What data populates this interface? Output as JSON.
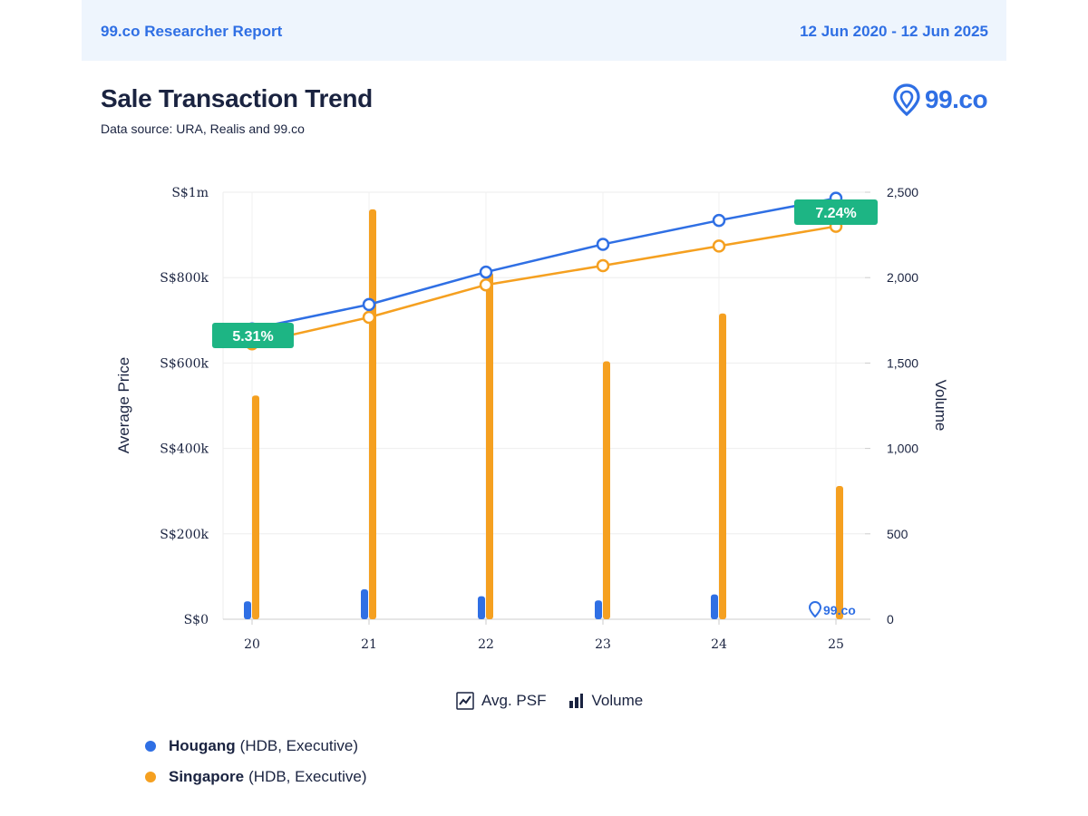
{
  "header": {
    "brand": "99.co Researcher Report",
    "date_range": "12 Jun 2020 - 12 Jun 2025"
  },
  "title": "Sale Transaction Trend",
  "subtitle": "Data source: URA, Realis and 99.co",
  "logo": {
    "text": "99.co",
    "icon": "location-pin-icon"
  },
  "watermark": {
    "text": "99.co",
    "icon": "location-pin-icon"
  },
  "toggles": [
    {
      "label": "Avg. PSF",
      "icon": "line-chart-icon"
    },
    {
      "label": "Volume",
      "icon": "bar-chart-icon"
    }
  ],
  "legend": [
    {
      "name": "Hougang",
      "detail": "(HDB, Executive)",
      "color": "#2f6fe4"
    },
    {
      "name": "Singapore",
      "detail": "(HDB, Executive)",
      "color": "#f5a020"
    }
  ],
  "chart_data": {
    "type": "line",
    "x": [
      "20",
      "21",
      "22",
      "23",
      "24",
      "25"
    ],
    "ylabel": "Average Price",
    "y2label": "Volume",
    "ylim": [
      0,
      1000000
    ],
    "y2lim": [
      0,
      2500
    ],
    "y_ticks": [
      "S$0",
      "S$200k",
      "S$400k",
      "S$600k",
      "S$800k",
      "S$1m"
    ],
    "y2_ticks": [
      "0",
      "500",
      "1,000",
      "1,500",
      "2,000",
      "2,500"
    ],
    "grid": true,
    "series": [
      {
        "name": "Hougang",
        "kind": "line",
        "axis": "left",
        "color": "#2f6fe4",
        "values": [
          680000,
          737000,
          813000,
          878000,
          934000,
          986000
        ]
      },
      {
        "name": "Singapore",
        "kind": "line",
        "axis": "left",
        "color": "#f5a020",
        "values": [
          645000,
          707000,
          783000,
          828000,
          874000,
          920000
        ]
      },
      {
        "name": "Hougang",
        "kind": "bar",
        "axis": "right",
        "color": "#2f6fe4",
        "values": [
          105,
          175,
          135,
          110,
          145,
          0
        ]
      },
      {
        "name": "Singapore",
        "kind": "bar",
        "axis": "right",
        "color": "#f5a020",
        "values": [
          1310,
          2400,
          2030,
          1510,
          1790,
          780
        ]
      }
    ],
    "annotations": [
      {
        "text": "5.31%",
        "x": "20",
        "color": "#1db584"
      },
      {
        "text": "7.24%",
        "x": "25",
        "color": "#1db584"
      }
    ]
  }
}
